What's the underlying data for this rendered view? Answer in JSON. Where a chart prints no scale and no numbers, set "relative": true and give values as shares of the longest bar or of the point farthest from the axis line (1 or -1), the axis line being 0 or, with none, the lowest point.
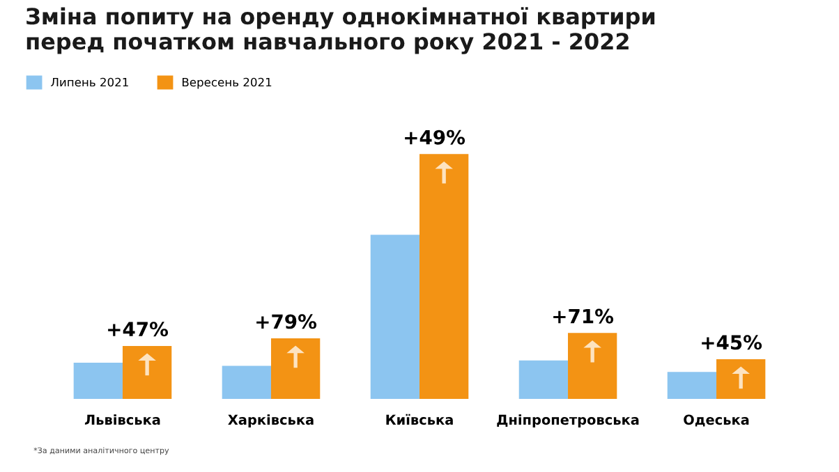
{
  "chart_data": {
    "type": "bar",
    "title": "Зміна попиту на оренду однокімнатної квартири\nперед початком навчального року 2021 - 2022",
    "categories": [
      "Львівська",
      "Харківська",
      "Київська",
      "Дніпропетровська",
      "Одеська"
    ],
    "relative": true,
    "series": [
      {
        "name": "Липень 2021",
        "color": "#8cc5f0",
        "values": [
          0.148,
          0.135,
          0.67,
          0.157,
          0.11
        ]
      },
      {
        "name": "Вересень 2021",
        "color": "#f39314",
        "values": [
          0.216,
          0.247,
          1.0,
          0.269,
          0.162
        ]
      }
    ],
    "annotations": [
      {
        "text": "+47%",
        "x": "Львівська",
        "y": 0.216
      },
      {
        "text": "+79%",
        "x": "Харківська",
        "y": 0.247
      },
      {
        "text": "+49%",
        "x": "Київська",
        "y": 1.0
      },
      {
        "text": "+71%",
        "x": "Дніпропетровська",
        "y": 0.269
      },
      {
        "text": "+45%",
        "x": "Одеська",
        "y": 0.162
      },
      "*За даними аналітичного центру"
    ],
    "legend": "top left",
    "grid": false
  }
}
